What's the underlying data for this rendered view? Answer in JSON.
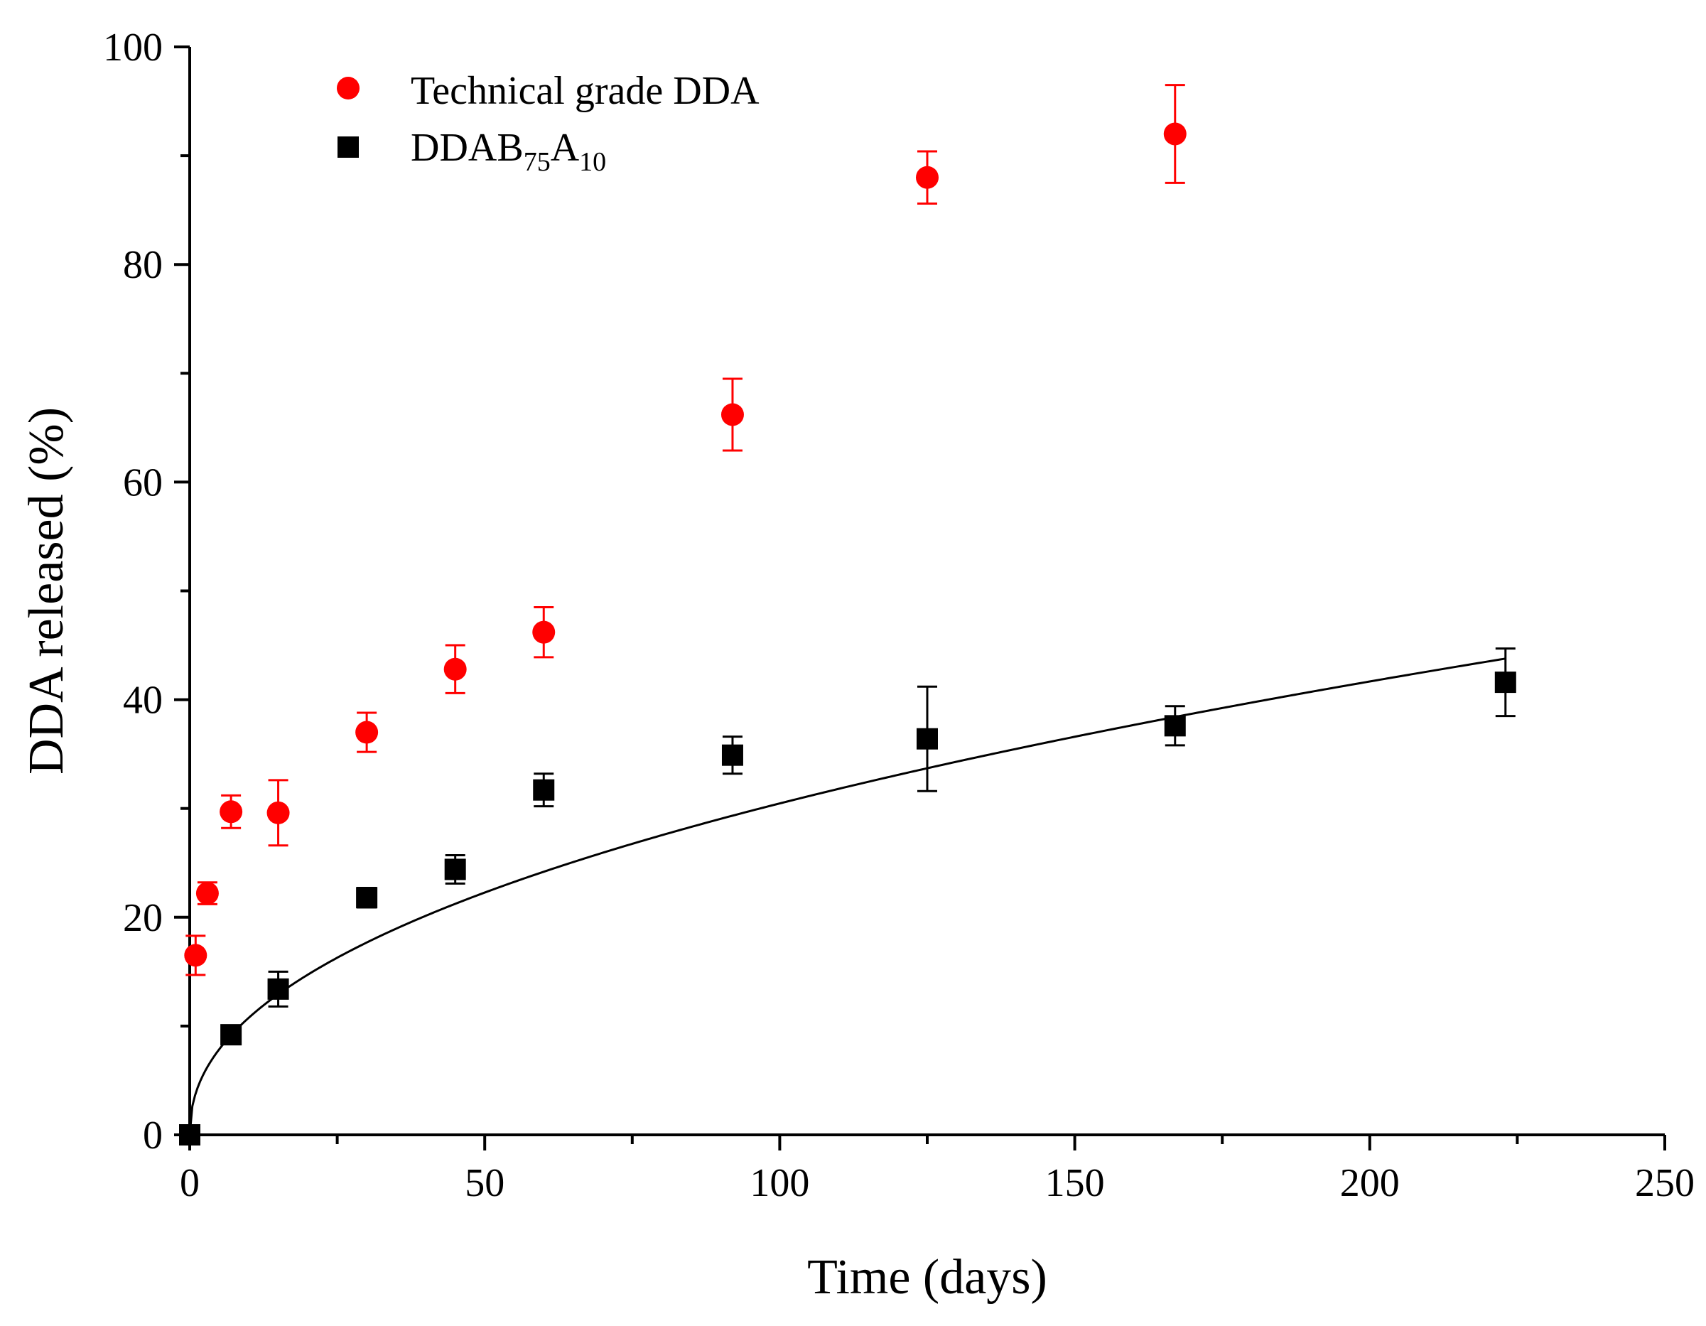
{
  "chart_data": {
    "type": "scatter",
    "title": "",
    "xlabel": "Time (days)",
    "ylabel": "DDA released (%)",
    "xlim": [
      0,
      250
    ],
    "ylim": [
      0,
      100
    ],
    "xticks": [
      0,
      50,
      100,
      150,
      200,
      250
    ],
    "yticks": [
      0,
      20,
      40,
      60,
      80,
      100
    ],
    "grid": false,
    "legend_position": "top-left",
    "series": [
      {
        "name": "Technical grade DDA",
        "marker": "circle",
        "color": "#ff0000",
        "x": [
          1,
          3,
          7,
          15,
          30,
          45,
          60,
          92,
          125,
          167
        ],
        "y": [
          16.5,
          22.2,
          29.7,
          29.6,
          37.0,
          42.8,
          46.2,
          66.2,
          88.0,
          92.0
        ],
        "error": [
          1.8,
          1.0,
          1.5,
          3.0,
          1.8,
          2.2,
          2.3,
          3.3,
          2.4,
          4.5
        ]
      },
      {
        "name": "DDAB",
        "name_sub1": "75",
        "name_mid": "A",
        "name_sub2": "10",
        "marker": "square",
        "color": "#000000",
        "x": [
          0,
          7,
          15,
          30,
          45,
          60,
          92,
          125,
          167,
          223
        ],
        "y": [
          0,
          9.2,
          13.4,
          21.8,
          24.4,
          31.7,
          34.9,
          36.4,
          37.6,
          41.6
        ],
        "error": [
          0,
          0,
          1.6,
          0.9,
          1.3,
          1.5,
          1.7,
          4.8,
          1.8,
          3.1
        ]
      }
    ],
    "fit_curve": {
      "name": "fit",
      "color": "#000000",
      "model": "power",
      "k": 3.8,
      "n": 0.452,
      "x_range": [
        0,
        223
      ]
    }
  }
}
